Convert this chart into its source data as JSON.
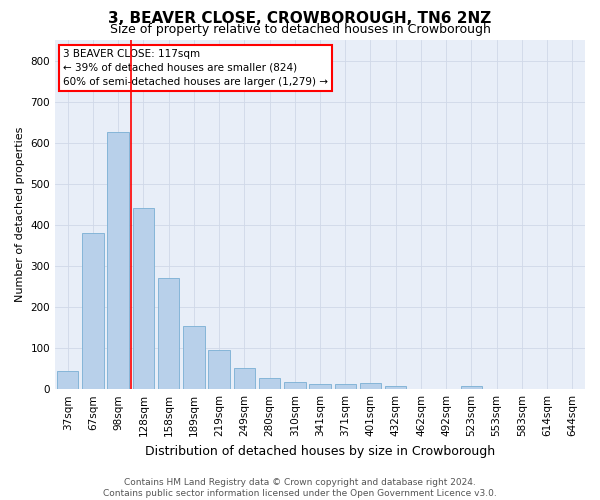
{
  "title": "3, BEAVER CLOSE, CROWBOROUGH, TN6 2NZ",
  "subtitle": "Size of property relative to detached houses in Crowborough",
  "xlabel": "Distribution of detached houses by size in Crowborough",
  "ylabel": "Number of detached properties",
  "footer_line1": "Contains HM Land Registry data © Crown copyright and database right 2024.",
  "footer_line2": "Contains public sector information licensed under the Open Government Licence v3.0.",
  "annotation_line1": "3 BEAVER CLOSE: 117sqm",
  "annotation_line2": "← 39% of detached houses are smaller (824)",
  "annotation_line3": "60% of semi-detached houses are larger (1,279) →",
  "bar_labels": [
    "37sqm",
    "67sqm",
    "98sqm",
    "128sqm",
    "158sqm",
    "189sqm",
    "219sqm",
    "249sqm",
    "280sqm",
    "310sqm",
    "341sqm",
    "371sqm",
    "401sqm",
    "432sqm",
    "462sqm",
    "492sqm",
    "523sqm",
    "553sqm",
    "583sqm",
    "614sqm",
    "644sqm"
  ],
  "bar_values": [
    44,
    380,
    625,
    440,
    270,
    155,
    95,
    52,
    28,
    17,
    12,
    12,
    15,
    8,
    0,
    0,
    8,
    0,
    0,
    0,
    0
  ],
  "bar_color": "#b8d0ea",
  "bar_edge_color": "#7aafd4",
  "grid_color": "#d0d8e8",
  "background_color": "#e8eef8",
  "vline_color": "red",
  "vline_position": 2.5,
  "ylim": [
    0,
    850
  ],
  "yticks": [
    0,
    100,
    200,
    300,
    400,
    500,
    600,
    700,
    800
  ],
  "title_fontsize": 11,
  "subtitle_fontsize": 9,
  "ylabel_fontsize": 8,
  "xlabel_fontsize": 9,
  "tick_fontsize": 7.5,
  "annotation_fontsize": 7.5,
  "footer_fontsize": 6.5
}
